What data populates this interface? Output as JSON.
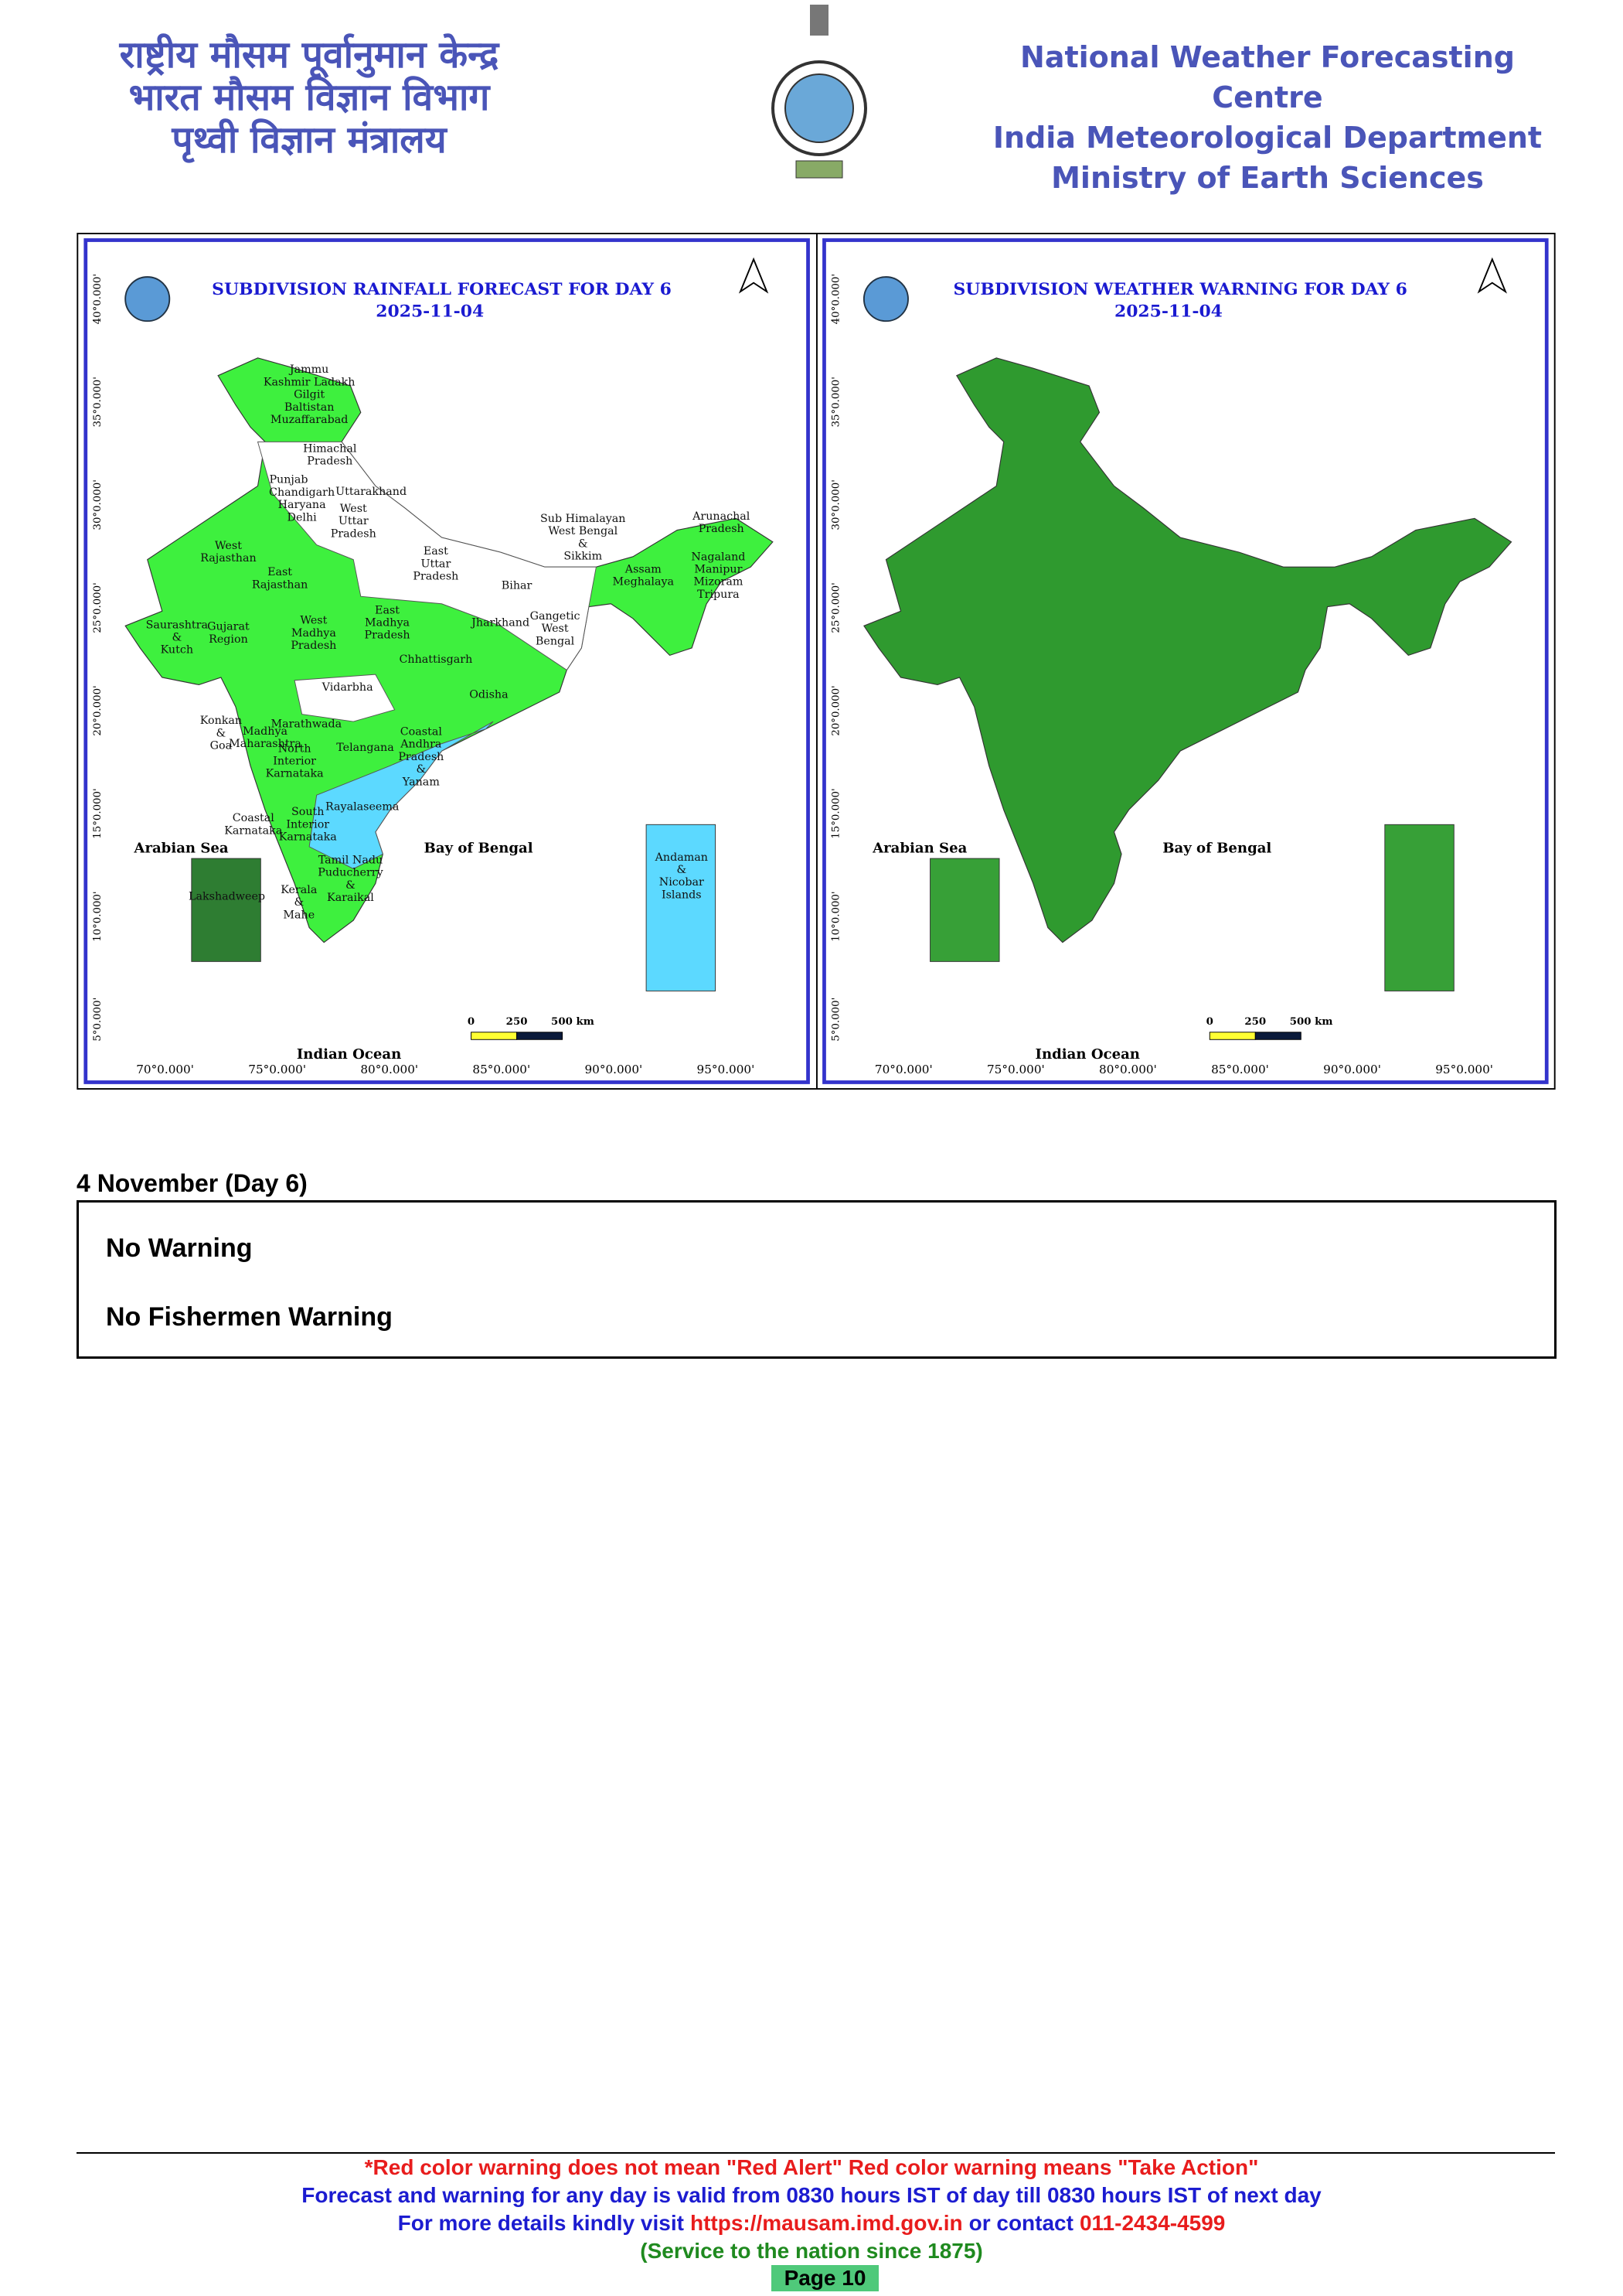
{
  "header": {
    "hindi": [
      "राष्ट्रीय मौसम पूर्वानुमान केन्द्र",
      "भारत मौसम विज्ञान विभाग",
      "पृथ्वी विज्ञान मंत्रालय"
    ],
    "english": [
      "National Weather Forecasting Centre",
      "India Meteorological Department",
      "Ministry of Earth Sciences"
    ]
  },
  "maps": [
    {
      "title": "SUBDIVISION RAINFALL FORECAST FOR DAY 6",
      "date": "2025-11-04",
      "seas": [
        "Arabian Sea",
        "Bay of Bengal",
        "Indian Ocean"
      ],
      "scale": [
        "0",
        "250",
        "500 km"
      ],
      "lat_ticks": [
        "40°0.000'",
        "35°0.000'",
        "30°0.000'",
        "25°0.000'",
        "20°0.000'",
        "15°0.000'",
        "10°0.000'",
        "5°0.000'"
      ],
      "lon_ticks": [
        "70°0.000'",
        "75°0.000'",
        "80°0.000'",
        "85°0.000'",
        "90°0.000'",
        "95°0.000'"
      ],
      "regions": [
        [
          "Jammu",
          "Kashmir Ladakh",
          "Gilgit",
          "Baltistan",
          "Muzaffarabad"
        ],
        [
          "Himachal",
          "Pradesh"
        ],
        [
          "Punjab"
        ],
        [
          "Uttarakhand"
        ],
        [
          "Chandigarh",
          "Haryana",
          "Delhi"
        ],
        [
          "West",
          "Uttar",
          "Pradesh"
        ],
        [
          "West",
          "Rajasthan"
        ],
        [
          "East",
          "Uttar",
          "Pradesh"
        ],
        [
          "Bihar"
        ],
        [
          "Sub Himalayan",
          "West Bengal",
          "&",
          "Sikkim"
        ],
        [
          "Arunachal",
          "Pradesh"
        ],
        [
          "Assam",
          "Meghalaya"
        ],
        [
          "Nagaland",
          "Manipur",
          "Mizoram",
          "Tripura"
        ],
        [
          "East",
          "Rajasthan"
        ],
        [
          "Jharkhand"
        ],
        [
          "Gangetic",
          "West",
          "Bengal"
        ],
        [
          "West",
          "Madhya",
          "Pradesh"
        ],
        [
          "East",
          "Madhya",
          "Pradesh"
        ],
        [
          "Saurashtra",
          "&",
          "Kutch"
        ],
        [
          "Gujarat",
          "Region"
        ],
        [
          "Chhattisgarh"
        ],
        [
          "Odisha"
        ],
        [
          "Vidarbha"
        ],
        [
          "Marathwada"
        ],
        [
          "Konkan",
          "&",
          "Goa"
        ],
        [
          "Madhya",
          "Maharashtra"
        ],
        [
          "Telangana"
        ],
        [
          "Coastal",
          "Andhra",
          "Pradesh",
          "&",
          "Yanam"
        ],
        [
          "North",
          "Interior",
          "Karnataka"
        ],
        [
          "Rayalaseema"
        ],
        [
          "Coastal",
          "Karnataka"
        ],
        [
          "South",
          "Interior",
          "Karnataka"
        ],
        [
          "Tamil Nadu",
          "Puducherry",
          "&",
          "Karaikal"
        ],
        [
          "Kerala",
          "&",
          "Mahe"
        ],
        [
          "Lakshadweep"
        ],
        [
          "Andaman",
          "&",
          "Nicobar",
          "Islands"
        ]
      ]
    },
    {
      "title": "SUBDIVISION WEATHER WARNING FOR DAY 6",
      "date": "2025-11-04",
      "seas": [
        "Arabian Sea",
        "Bay of Bengal",
        "Indian Ocean"
      ],
      "scale": [
        "0",
        "250",
        "500 km"
      ],
      "lat_ticks": [
        "40°0.000'",
        "35°0.000'",
        "30°0.000'",
        "25°0.000'",
        "20°0.000'",
        "15°0.000'",
        "10°0.000'",
        "5°0.000'"
      ],
      "lon_ticks": [
        "70°0.000'",
        "75°0.000'",
        "80°0.000'",
        "85°0.000'",
        "90°0.000'",
        "95°0.000'"
      ],
      "regions": []
    }
  ],
  "section": {
    "heading": "4 November (Day 6)",
    "warnings": [
      "No Warning",
      "No Fishermen Warning"
    ]
  },
  "footer": {
    "note": "*Red color warning does not mean \"Red Alert\" Red color warning means \"Take Action\"",
    "validity": "Forecast and warning for any day is valid from 0830 hours IST of day till 0830 hours IST of next day",
    "contact": {
      "prefix": "For more details kindly visit",
      "url": "https://mausam.imd.gov.in",
      "middle": "or contact",
      "phone": "011-2434-4599"
    },
    "service": "(Service to the nation since 1875)",
    "page": "Page 10"
  }
}
